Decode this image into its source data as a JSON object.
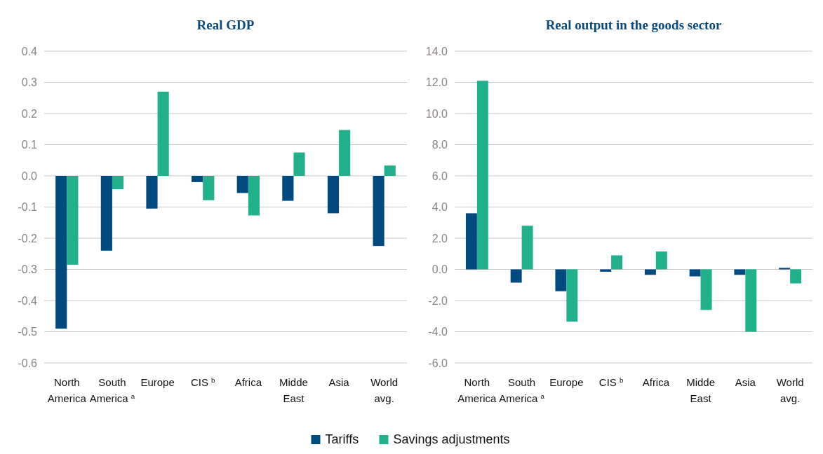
{
  "chart_data": [
    {
      "type": "bar",
      "title": "Real GDP",
      "categories": [
        "North America",
        "South America $^{a}$",
        "Europe",
        "CIS $^{b}$",
        "Africa",
        "Midde East",
        "Asia",
        "World avg."
      ],
      "series": [
        {
          "name": "Tariffs",
          "color": "#004a80",
          "values": [
            -0.49,
            -0.24,
            -0.105,
            -0.02,
            -0.055,
            -0.08,
            -0.12,
            -0.225
          ]
        },
        {
          "name": "Savings adjustments",
          "color": "#20b08c",
          "values": [
            -0.285,
            -0.043,
            0.27,
            -0.078,
            -0.127,
            0.075,
            0.147,
            0.033
          ]
        }
      ],
      "ylim": [
        -0.6,
        0.4
      ],
      "yticks": [
        {
          "value": -0.6,
          "label": "-0.6"
        },
        {
          "value": -0.5,
          "label": "-0.5"
        },
        {
          "value": -0.4,
          "label": "-0.4"
        },
        {
          "value": -0.3,
          "label": "-0.3"
        },
        {
          "value": -0.2,
          "label": "-0.2"
        },
        {
          "value": -0.1,
          "label": "-0.1"
        },
        {
          "value": 0,
          "label": "0.0"
        },
        {
          "value": 0.1,
          "label": "0.1"
        },
        {
          "value": 0.2,
          "label": "0.2"
        },
        {
          "value": 0.3,
          "label": "0.3"
        },
        {
          "value": 0.4,
          "label": "0.4"
        }
      ],
      "grid": "y",
      "legend": "bottom"
    },
    {
      "type": "bar",
      "title": "Real output in the goods sector",
      "categories": [
        "North America",
        "South America $^{a}$",
        "Europe",
        "CIS $^{b}$",
        "Africa",
        "Midde East",
        "Asia",
        "World avg."
      ],
      "series": [
        {
          "name": "Tariffs",
          "color": "#004a80",
          "values": [
            3.6,
            -0.85,
            -1.4,
            -0.15,
            -0.35,
            -0.45,
            -0.35,
            0.1
          ]
        },
        {
          "name": "Savings adjustments",
          "color": "#20b08c",
          "values": [
            12.1,
            2.8,
            -3.35,
            0.9,
            1.15,
            -2.6,
            -4.0,
            -0.9
          ]
        }
      ],
      "ylim": [
        -6,
        14
      ],
      "yticks": [
        {
          "value": -6,
          "label": "-6.0"
        },
        {
          "value": -4,
          "label": "-4.0"
        },
        {
          "value": -2,
          "label": "-2.0"
        },
        {
          "value": 0,
          "label": "0.0"
        },
        {
          "value": 2,
          "label": "2.0"
        },
        {
          "value": 4,
          "label": "4.0"
        },
        {
          "value": 6,
          "label": "6.0"
        },
        {
          "value": 8,
          "label": "8.0"
        },
        {
          "value": 10,
          "label": "10.0"
        },
        {
          "value": 12,
          "label": "12.0"
        },
        {
          "value": 14,
          "label": "14.0"
        }
      ],
      "grid": "y"
    }
  ]
}
